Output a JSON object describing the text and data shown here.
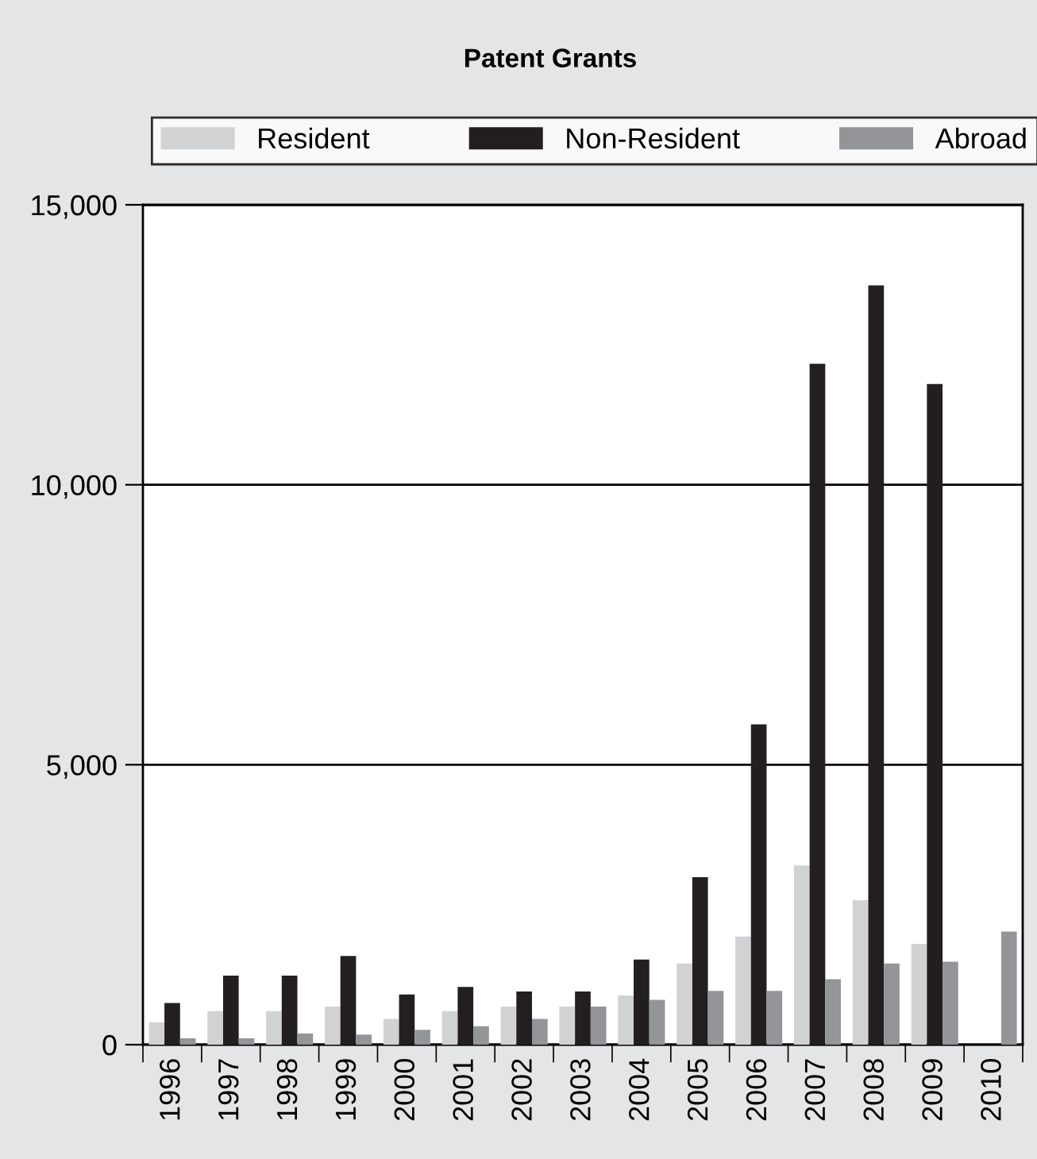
{
  "chart_data": {
    "type": "bar",
    "title": "Patent Grants",
    "categories": [
      "1996",
      "1997",
      "1998",
      "1999",
      "2000",
      "2001",
      "2002",
      "2003",
      "2004",
      "2005",
      "2006",
      "2007",
      "2008",
      "2009",
      "2010"
    ],
    "series": [
      {
        "name": "Resident",
        "color": "#d1d2d4",
        "values": [
          400,
          600,
          600,
          680,
          460,
          600,
          680,
          680,
          880,
          1450,
          1930,
          3200,
          2580,
          1800,
          null
        ]
      },
      {
        "name": "Non-Resident",
        "color": "#231f20",
        "values": [
          745,
          1235,
          1235,
          1585,
          895,
          1030,
          950,
          950,
          1520,
          2990,
          5720,
          12160,
          13560,
          11800,
          null
        ]
      },
      {
        "name": "Abroad",
        "color": "#939598",
        "values": [
          115,
          115,
          200,
          180,
          265,
          330,
          460,
          680,
          800,
          960,
          960,
          1170,
          1450,
          1480,
          2020
        ]
      }
    ],
    "ylim": [
      0,
      15000
    ],
    "yticks": [
      {
        "value": 0,
        "label": "0"
      },
      {
        "value": 5000,
        "label": "5,000"
      },
      {
        "value": 10000,
        "label": "10,000"
      },
      {
        "value": 15000,
        "label": "15,000"
      }
    ],
    "grid": "y",
    "legend": "top"
  }
}
